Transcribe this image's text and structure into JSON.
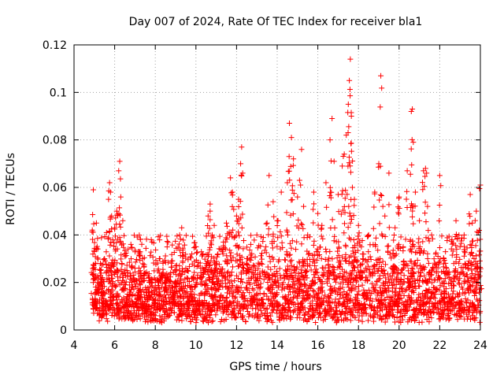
{
  "chart_data": {
    "type": "scatter",
    "title": "Day 007 of 2024, Rate Of TEC Index for receiver bla1",
    "xlabel": "GPS time / hours",
    "ylabel": "ROTI / TECUs",
    "xlim": [
      4,
      24
    ],
    "ylim": [
      0,
      0.12
    ],
    "xticks": [
      "4",
      "6",
      "8",
      "10",
      "12",
      "14",
      "16",
      "18",
      "20",
      "22",
      "24"
    ],
    "yticks": [
      "0",
      "0.02",
      "0.04",
      "0.06",
      "0.08",
      "0.1",
      "0.12"
    ],
    "grid": true,
    "marker": "plus",
    "color": "#ff0000",
    "series": [
      {
        "name": "ROTI",
        "x": [
          4.9,
          4.95,
          5.0,
          5.05,
          5.1,
          5.2,
          5.3,
          5.4,
          5.5,
          5.6,
          5.7,
          5.75,
          5.8,
          5.85,
          5.9,
          6.0,
          6.1,
          6.2,
          6.25,
          6.3,
          6.4,
          6.5,
          6.6,
          6.8,
          7.0,
          7.2,
          7.5,
          7.8,
          8.0,
          8.2,
          8.5,
          8.8,
          9.0,
          9.2,
          9.3,
          9.4,
          9.6,
          9.8,
          10.0,
          10.2,
          10.5,
          10.6,
          10.7,
          10.8,
          10.9,
          11.0,
          11.2,
          11.5,
          11.7,
          11.8,
          12.0,
          12.1,
          12.2,
          12.25,
          12.3,
          12.5,
          12.7,
          13.0,
          13.2,
          13.5,
          13.6,
          13.8,
          14.0,
          14.2,
          14.5,
          14.6,
          14.7,
          14.8,
          15.0,
          15.1,
          15.2,
          15.3,
          15.5,
          15.8,
          16.0,
          16.2,
          16.4,
          16.6,
          16.7,
          16.8,
          17.0,
          17.2,
          17.3,
          17.4,
          17.5,
          17.55,
          17.6,
          17.65,
          17.7,
          17.8,
          18.0,
          18.2,
          18.5,
          18.8,
          19.0,
          19.1,
          19.2,
          19.3,
          19.5,
          19.8,
          20.0,
          20.2,
          20.4,
          20.6,
          20.65,
          20.7,
          20.8,
          21.0,
          21.2,
          21.3,
          21.4,
          21.6,
          21.8,
          22.0,
          22.2,
          22.4,
          22.6,
          22.8,
          23.0,
          23.2,
          23.4,
          23.5,
          23.6,
          23.8,
          23.9,
          24.0
        ],
        "y": [
          0.042,
          0.059,
          0.033,
          0.012,
          0.045,
          0.018,
          0.028,
          0.022,
          0.03,
          0.041,
          0.055,
          0.062,
          0.058,
          0.048,
          0.038,
          0.043,
          0.05,
          0.067,
          0.071,
          0.056,
          0.046,
          0.032,
          0.025,
          0.036,
          0.026,
          0.033,
          0.024,
          0.038,
          0.02,
          0.03,
          0.022,
          0.029,
          0.027,
          0.04,
          0.043,
          0.031,
          0.025,
          0.032,
          0.035,
          0.022,
          0.028,
          0.048,
          0.053,
          0.04,
          0.044,
          0.026,
          0.034,
          0.045,
          0.064,
          0.058,
          0.048,
          0.055,
          0.07,
          0.077,
          0.066,
          0.03,
          0.036,
          0.04,
          0.028,
          0.045,
          0.065,
          0.054,
          0.046,
          0.058,
          0.062,
          0.087,
          0.081,
          0.072,
          0.056,
          0.063,
          0.076,
          0.052,
          0.04,
          0.058,
          0.049,
          0.044,
          0.062,
          0.08,
          0.089,
          0.071,
          0.057,
          0.069,
          0.074,
          0.082,
          0.095,
          0.105,
          0.114,
          0.09,
          0.06,
          0.055,
          0.044,
          0.032,
          0.04,
          0.058,
          0.07,
          0.107,
          0.052,
          0.048,
          0.066,
          0.043,
          0.056,
          0.035,
          0.067,
          0.092,
          0.093,
          0.079,
          0.058,
          0.046,
          0.067,
          0.068,
          0.052,
          0.04,
          0.032,
          0.065,
          0.03,
          0.024,
          0.038,
          0.046,
          0.035,
          0.04,
          0.028,
          0.057,
          0.045,
          0.05,
          0.041,
          0.061
        ]
      }
    ]
  }
}
